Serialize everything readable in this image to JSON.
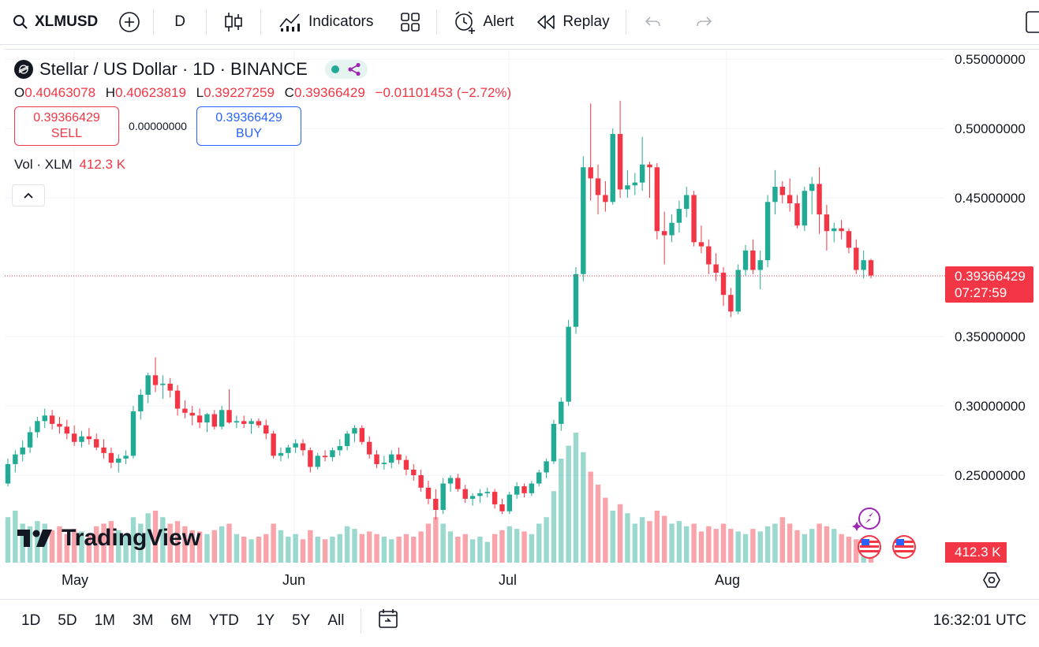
{
  "toolbar": {
    "symbol": "XLMUSD",
    "interval": "D",
    "indicators_label": "Indicators",
    "alert_label": "Alert",
    "replay_label": "Replay"
  },
  "legend": {
    "title": "Stellar / US Dollar · 1D · BINANCE",
    "open_key": "O",
    "open": "0.40463078",
    "high_key": "H",
    "high": "0.40623819",
    "low_key": "L",
    "low": "0.39227259",
    "close_key": "C",
    "close": "0.39366429",
    "change": "−0.01101453 (−2.72%)",
    "sell_price": "0.39366429",
    "sell_label": "SELL",
    "spread": "0.00000000",
    "buy_price": "0.39366429",
    "buy_label": "BUY",
    "volume_label": "Vol · XLM",
    "volume_value": "412.3 K"
  },
  "price_axis": {
    "ticks": [
      "0.55000000",
      "0.50000000",
      "0.45000000",
      "0.35000000",
      "0.30000000",
      "0.25000000"
    ],
    "last_price": "0.39366429",
    "countdown": "07:27:59",
    "volume_tag": "412.3 K"
  },
  "time_axis": {
    "months": [
      "May",
      "Jun",
      "Jul",
      "Aug"
    ]
  },
  "brand": "TradingView",
  "bottom": {
    "ranges": [
      "1D",
      "5D",
      "1M",
      "3M",
      "6M",
      "YTD",
      "1Y",
      "5Y",
      "All"
    ],
    "clock": "16:32:01 UTC"
  },
  "colors": {
    "up": "#22ab94",
    "down": "#f23645",
    "accent": "#2962ff"
  },
  "chart_data": {
    "type": "candlestick",
    "symbol": "XLMUSD",
    "interval": "1D",
    "ylim": [
      0.19,
      0.56
    ],
    "candles": [
      [
        0.244,
        0.262,
        0.242,
        0.258
      ],
      [
        0.258,
        0.268,
        0.252,
        0.265
      ],
      [
        0.265,
        0.275,
        0.26,
        0.27
      ],
      [
        0.27,
        0.285,
        0.266,
        0.281
      ],
      [
        0.281,
        0.292,
        0.277,
        0.289
      ],
      [
        0.289,
        0.298,
        0.284,
        0.293
      ],
      [
        0.293,
        0.297,
        0.283,
        0.287
      ],
      [
        0.287,
        0.292,
        0.28,
        0.285
      ],
      [
        0.285,
        0.29,
        0.276,
        0.28
      ],
      [
        0.28,
        0.286,
        0.271,
        0.274
      ],
      [
        0.274,
        0.282,
        0.27,
        0.278
      ],
      [
        0.278,
        0.284,
        0.272,
        0.276
      ],
      [
        0.276,
        0.28,
        0.268,
        0.27
      ],
      [
        0.27,
        0.276,
        0.262,
        0.266
      ],
      [
        0.266,
        0.27,
        0.255,
        0.259
      ],
      [
        0.259,
        0.265,
        0.252,
        0.262
      ],
      [
        0.262,
        0.268,
        0.258,
        0.264
      ],
      [
        0.264,
        0.3,
        0.262,
        0.296
      ],
      [
        0.296,
        0.312,
        0.29,
        0.308
      ],
      [
        0.308,
        0.324,
        0.302,
        0.322
      ],
      [
        0.322,
        0.335,
        0.31,
        0.315
      ],
      [
        0.315,
        0.322,
        0.305,
        0.316
      ],
      [
        0.316,
        0.32,
        0.306,
        0.311
      ],
      [
        0.311,
        0.315,
        0.293,
        0.298
      ],
      [
        0.298,
        0.304,
        0.291,
        0.295
      ],
      [
        0.295,
        0.3,
        0.286,
        0.293
      ],
      [
        0.293,
        0.298,
        0.284,
        0.288
      ],
      [
        0.288,
        0.295,
        0.281,
        0.294
      ],
      [
        0.294,
        0.297,
        0.283,
        0.285
      ],
      [
        0.285,
        0.3,
        0.283,
        0.297
      ],
      [
        0.297,
        0.312,
        0.287,
        0.288
      ],
      [
        0.288,
        0.293,
        0.284,
        0.289
      ],
      [
        0.289,
        0.293,
        0.284,
        0.287
      ],
      [
        0.287,
        0.291,
        0.28,
        0.289
      ],
      [
        0.289,
        0.291,
        0.284,
        0.286
      ],
      [
        0.286,
        0.29,
        0.276,
        0.28
      ],
      [
        0.28,
        0.282,
        0.262,
        0.264
      ],
      [
        0.264,
        0.27,
        0.26,
        0.266
      ],
      [
        0.266,
        0.272,
        0.262,
        0.27
      ],
      [
        0.27,
        0.276,
        0.266,
        0.273
      ],
      [
        0.273,
        0.276,
        0.264,
        0.268
      ],
      [
        0.268,
        0.27,
        0.252,
        0.256
      ],
      [
        0.256,
        0.266,
        0.254,
        0.264
      ],
      [
        0.264,
        0.268,
        0.26,
        0.263
      ],
      [
        0.263,
        0.27,
        0.26,
        0.268
      ],
      [
        0.268,
        0.276,
        0.264,
        0.271
      ],
      [
        0.271,
        0.282,
        0.268,
        0.28
      ],
      [
        0.28,
        0.286,
        0.274,
        0.284
      ],
      [
        0.284,
        0.286,
        0.272,
        0.274
      ],
      [
        0.274,
        0.278,
        0.262,
        0.265
      ],
      [
        0.265,
        0.268,
        0.255,
        0.258
      ],
      [
        0.258,
        0.264,
        0.254,
        0.259
      ],
      [
        0.259,
        0.268,
        0.255,
        0.265
      ],
      [
        0.265,
        0.27,
        0.258,
        0.261
      ],
      [
        0.261,
        0.264,
        0.25,
        0.254
      ],
      [
        0.254,
        0.258,
        0.246,
        0.25
      ],
      [
        0.25,
        0.254,
        0.238,
        0.241
      ],
      [
        0.241,
        0.246,
        0.229,
        0.233
      ],
      [
        0.233,
        0.24,
        0.218,
        0.225
      ],
      [
        0.225,
        0.248,
        0.222,
        0.244
      ],
      [
        0.244,
        0.25,
        0.238,
        0.248
      ],
      [
        0.248,
        0.251,
        0.238,
        0.24
      ],
      [
        0.24,
        0.243,
        0.23,
        0.233
      ],
      [
        0.233,
        0.237,
        0.228,
        0.235
      ],
      [
        0.235,
        0.24,
        0.23,
        0.237
      ],
      [
        0.237,
        0.241,
        0.234,
        0.238
      ],
      [
        0.238,
        0.24,
        0.226,
        0.229
      ],
      [
        0.229,
        0.233,
        0.222,
        0.224
      ],
      [
        0.224,
        0.238,
        0.222,
        0.236
      ],
      [
        0.236,
        0.245,
        0.233,
        0.242
      ],
      [
        0.242,
        0.244,
        0.234,
        0.237
      ],
      [
        0.237,
        0.246,
        0.235,
        0.244
      ],
      [
        0.244,
        0.254,
        0.242,
        0.252
      ],
      [
        0.252,
        0.262,
        0.248,
        0.26
      ],
      [
        0.26,
        0.29,
        0.258,
        0.287
      ],
      [
        0.287,
        0.306,
        0.282,
        0.303
      ],
      [
        0.303,
        0.362,
        0.3,
        0.357
      ],
      [
        0.357,
        0.4,
        0.352,
        0.395
      ],
      [
        0.395,
        0.48,
        0.39,
        0.472
      ],
      [
        0.472,
        0.518,
        0.448,
        0.464
      ],
      [
        0.464,
        0.474,
        0.438,
        0.452
      ],
      [
        0.452,
        0.462,
        0.44,
        0.447
      ],
      [
        0.447,
        0.5,
        0.445,
        0.496
      ],
      [
        0.496,
        0.52,
        0.45,
        0.456
      ],
      [
        0.456,
        0.47,
        0.45,
        0.459
      ],
      [
        0.459,
        0.468,
        0.452,
        0.461
      ],
      [
        0.461,
        0.494,
        0.455,
        0.474
      ],
      [
        0.474,
        0.476,
        0.45,
        0.472
      ],
      [
        0.472,
        0.475,
        0.42,
        0.426
      ],
      [
        0.426,
        0.44,
        0.402,
        0.423
      ],
      [
        0.423,
        0.438,
        0.418,
        0.432
      ],
      [
        0.432,
        0.448,
        0.425,
        0.442
      ],
      [
        0.442,
        0.458,
        0.436,
        0.452
      ],
      [
        0.452,
        0.455,
        0.415,
        0.418
      ],
      [
        0.418,
        0.43,
        0.41,
        0.415
      ],
      [
        0.415,
        0.42,
        0.395,
        0.402
      ],
      [
        0.402,
        0.41,
        0.39,
        0.396
      ],
      [
        0.396,
        0.4,
        0.372,
        0.38
      ],
      [
        0.38,
        0.385,
        0.364,
        0.368
      ],
      [
        0.368,
        0.402,
        0.366,
        0.398
      ],
      [
        0.398,
        0.416,
        0.394,
        0.412
      ],
      [
        0.412,
        0.42,
        0.395,
        0.398
      ],
      [
        0.398,
        0.412,
        0.384,
        0.405
      ],
      [
        0.405,
        0.452,
        0.4,
        0.447
      ],
      [
        0.447,
        0.47,
        0.438,
        0.458
      ],
      [
        0.458,
        0.462,
        0.446,
        0.452
      ],
      [
        0.452,
        0.464,
        0.44,
        0.446
      ],
      [
        0.446,
        0.452,
        0.428,
        0.43
      ],
      [
        0.43,
        0.458,
        0.426,
        0.455
      ],
      [
        0.455,
        0.465,
        0.438,
        0.46
      ],
      [
        0.46,
        0.472,
        0.424,
        0.438
      ],
      [
        0.438,
        0.445,
        0.412,
        0.426
      ],
      [
        0.426,
        0.432,
        0.418,
        0.428
      ],
      [
        0.428,
        0.434,
        0.42,
        0.426
      ],
      [
        0.426,
        0.428,
        0.41,
        0.414
      ],
      [
        0.414,
        0.42,
        0.395,
        0.398
      ],
      [
        0.398,
        0.412,
        0.392,
        0.405
      ],
      [
        0.405,
        0.406,
        0.392,
        0.394
      ]
    ],
    "volume": [
      0.35,
      0.4,
      0.3,
      0.28,
      0.32,
      0.3,
      0.25,
      0.28,
      0.22,
      0.26,
      0.24,
      0.22,
      0.28,
      0.3,
      0.32,
      0.25,
      0.22,
      0.35,
      0.3,
      0.38,
      0.4,
      0.35,
      0.3,
      0.32,
      0.28,
      0.25,
      0.24,
      0.22,
      0.25,
      0.28,
      0.3,
      0.22,
      0.2,
      0.18,
      0.2,
      0.22,
      0.3,
      0.25,
      0.2,
      0.22,
      0.18,
      0.25,
      0.2,
      0.18,
      0.2,
      0.22,
      0.28,
      0.26,
      0.22,
      0.24,
      0.22,
      0.2,
      0.18,
      0.2,
      0.22,
      0.2,
      0.24,
      0.3,
      0.35,
      0.3,
      0.24,
      0.2,
      0.22,
      0.18,
      0.2,
      0.16,
      0.22,
      0.25,
      0.28,
      0.26,
      0.24,
      0.22,
      0.3,
      0.35,
      0.55,
      0.8,
      0.9,
      1.0,
      0.85,
      0.7,
      0.6,
      0.5,
      0.4,
      0.45,
      0.38,
      0.3,
      0.35,
      0.32,
      0.4,
      0.36,
      0.3,
      0.32,
      0.28,
      0.3,
      0.24,
      0.28,
      0.26,
      0.3,
      0.26,
      0.24,
      0.22,
      0.26,
      0.24,
      0.28,
      0.3,
      0.35,
      0.3,
      0.25,
      0.22,
      0.26,
      0.3,
      0.28,
      0.26,
      0.22,
      0.2,
      0.18,
      0.16,
      0.15
    ]
  }
}
